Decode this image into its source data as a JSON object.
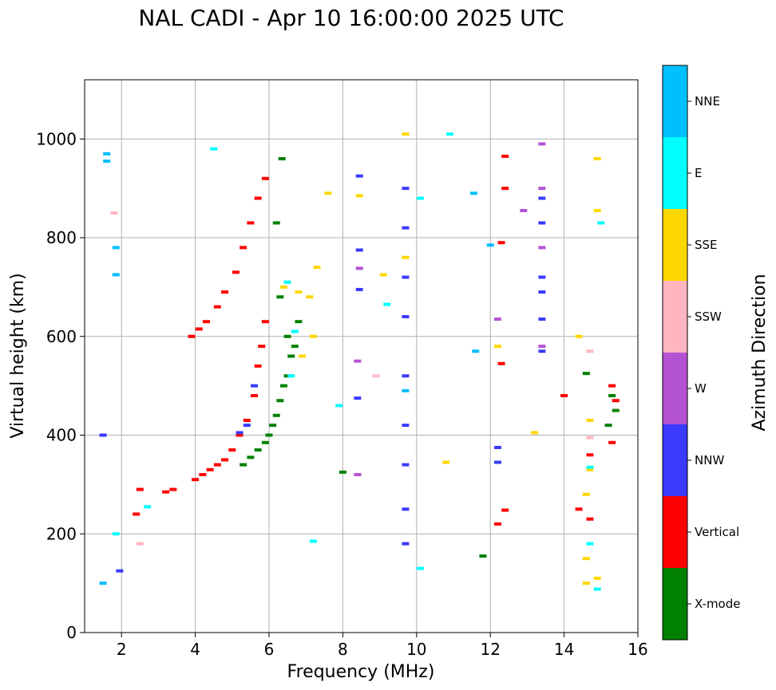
{
  "chart_data": {
    "type": "scatter",
    "title": "NAL CADI - Apr 10 16:00:00 2025 UTC",
    "xlabel": "Frequency (MHz)",
    "ylabel": "Virtual height (km)",
    "xlim": [
      1.0,
      16.0
    ],
    "ylim": [
      0,
      1120
    ],
    "xticks": [
      2,
      4,
      6,
      8,
      10,
      12,
      14,
      16
    ],
    "yticks": [
      0,
      200,
      400,
      600,
      800,
      1000
    ],
    "grid": true,
    "colorbar": {
      "label": "Azimuth Direction",
      "categories": [
        {
          "name": "X-mode",
          "color": "#008000"
        },
        {
          "name": "Vertical",
          "color": "#ff0000"
        },
        {
          "name": "NNW",
          "color": "#3a3aff"
        },
        {
          "name": "W",
          "color": "#b452d4"
        },
        {
          "name": "SSW",
          "color": "#ffb6c1"
        },
        {
          "name": "SSE",
          "color": "#ffd700"
        },
        {
          "name": "E",
          "color": "#00ffff"
        },
        {
          "name": "NNE",
          "color": "#00bfff"
        }
      ]
    },
    "series": [
      {
        "name": "X-mode",
        "points": [
          [
            5.3,
            340
          ],
          [
            5.5,
            355
          ],
          [
            5.7,
            370
          ],
          [
            5.9,
            385
          ],
          [
            6.0,
            400
          ],
          [
            6.1,
            420
          ],
          [
            6.2,
            440
          ],
          [
            6.3,
            470
          ],
          [
            6.4,
            500
          ],
          [
            6.5,
            520
          ],
          [
            6.6,
            560
          ],
          [
            6.7,
            580
          ],
          [
            6.5,
            600
          ],
          [
            6.8,
            630
          ],
          [
            6.3,
            680
          ],
          [
            6.35,
            960
          ],
          [
            6.2,
            830
          ],
          [
            8.0,
            325
          ],
          [
            11.8,
            155
          ],
          [
            15.2,
            420
          ],
          [
            15.3,
            480
          ],
          [
            15.4,
            450
          ],
          [
            14.6,
            525
          ]
        ]
      },
      {
        "name": "Vertical",
        "points": [
          [
            4.0,
            310
          ],
          [
            4.2,
            320
          ],
          [
            4.4,
            330
          ],
          [
            4.6,
            340
          ],
          [
            4.8,
            350
          ],
          [
            5.0,
            370
          ],
          [
            5.2,
            400
          ],
          [
            5.4,
            430
          ],
          [
            5.6,
            480
          ],
          [
            5.7,
            540
          ],
          [
            5.8,
            580
          ],
          [
            5.9,
            630
          ],
          [
            3.9,
            600
          ],
          [
            4.1,
            615
          ],
          [
            4.3,
            630
          ],
          [
            4.6,
            660
          ],
          [
            4.8,
            690
          ],
          [
            5.1,
            730
          ],
          [
            5.3,
            780
          ],
          [
            5.5,
            830
          ],
          [
            5.7,
            880
          ],
          [
            5.9,
            920
          ],
          [
            3.2,
            285
          ],
          [
            3.4,
            290
          ],
          [
            2.5,
            290
          ],
          [
            2.4,
            240
          ],
          [
            12.3,
            790
          ],
          [
            12.4,
            900
          ],
          [
            12.4,
            965
          ],
          [
            12.3,
            545
          ],
          [
            15.3,
            500
          ],
          [
            15.4,
            470
          ],
          [
            15.3,
            385
          ],
          [
            14.7,
            360
          ],
          [
            14.7,
            230
          ],
          [
            14.4,
            250
          ],
          [
            12.2,
            220
          ],
          [
            12.4,
            248
          ],
          [
            14.0,
            480
          ]
        ]
      },
      {
        "name": "NNW",
        "points": [
          [
            5.2,
            405
          ],
          [
            5.4,
            420
          ],
          [
            5.6,
            500
          ],
          [
            8.45,
            925
          ],
          [
            8.45,
            775
          ],
          [
            8.45,
            695
          ],
          [
            8.4,
            475
          ],
          [
            9.7,
            900
          ],
          [
            9.7,
            820
          ],
          [
            9.7,
            720
          ],
          [
            9.7,
            640
          ],
          [
            9.7,
            520
          ],
          [
            9.7,
            420
          ],
          [
            9.7,
            340
          ],
          [
            9.7,
            250
          ],
          [
            9.7,
            180
          ],
          [
            13.4,
            880
          ],
          [
            13.4,
            830
          ],
          [
            13.4,
            720
          ],
          [
            13.4,
            690
          ],
          [
            13.4,
            635
          ],
          [
            13.4,
            570
          ],
          [
            12.2,
            375
          ],
          [
            12.2,
            345
          ],
          [
            1.95,
            125
          ],
          [
            1.5,
            400
          ]
        ]
      },
      {
        "name": "W",
        "points": [
          [
            8.45,
            738
          ],
          [
            8.4,
            550
          ],
          [
            8.4,
            320
          ],
          [
            13.4,
            990
          ],
          [
            13.4,
            900
          ],
          [
            13.4,
            780
          ],
          [
            13.4,
            580
          ],
          [
            12.9,
            855
          ],
          [
            12.2,
            635
          ]
        ]
      },
      {
        "name": "SSW",
        "points": [
          [
            2.5,
            180
          ],
          [
            8.9,
            520
          ],
          [
            14.7,
            570
          ],
          [
            14.7,
            395
          ],
          [
            1.8,
            850
          ]
        ]
      },
      {
        "name": "SSE",
        "points": [
          [
            6.4,
            700
          ],
          [
            6.8,
            690
          ],
          [
            7.1,
            680
          ],
          [
            7.2,
            600
          ],
          [
            6.9,
            560
          ],
          [
            8.45,
            885
          ],
          [
            9.7,
            1010
          ],
          [
            9.7,
            760
          ],
          [
            12.2,
            580
          ],
          [
            14.4,
            600
          ],
          [
            14.7,
            430
          ],
          [
            14.7,
            330
          ],
          [
            14.6,
            280
          ],
          [
            14.6,
            150
          ],
          [
            14.6,
            100
          ],
          [
            14.9,
            960
          ],
          [
            14.9,
            855
          ],
          [
            14.9,
            110
          ],
          [
            13.2,
            405
          ],
          [
            10.8,
            345
          ],
          [
            9.1,
            725
          ],
          [
            7.6,
            890
          ],
          [
            7.3,
            740
          ]
        ]
      },
      {
        "name": "E",
        "points": [
          [
            6.5,
            710
          ],
          [
            6.7,
            610
          ],
          [
            6.6,
            520
          ],
          [
            9.2,
            665
          ],
          [
            10.1,
            880
          ],
          [
            10.1,
            130
          ],
          [
            10.9,
            1010
          ],
          [
            14.7,
            180
          ],
          [
            14.7,
            335
          ],
          [
            14.9,
            88
          ],
          [
            15.0,
            830
          ],
          [
            2.7,
            255
          ],
          [
            7.2,
            185
          ],
          [
            7.9,
            460
          ],
          [
            1.85,
            200
          ],
          [
            4.5,
            980
          ]
        ]
      },
      {
        "name": "NNE",
        "points": [
          [
            1.6,
            970
          ],
          [
            1.6,
            955
          ],
          [
            1.85,
            780
          ],
          [
            1.85,
            725
          ],
          [
            1.5,
            100
          ],
          [
            11.6,
            570
          ],
          [
            11.55,
            890
          ],
          [
            12.0,
            785
          ],
          [
            9.7,
            490
          ]
        ]
      }
    ]
  }
}
